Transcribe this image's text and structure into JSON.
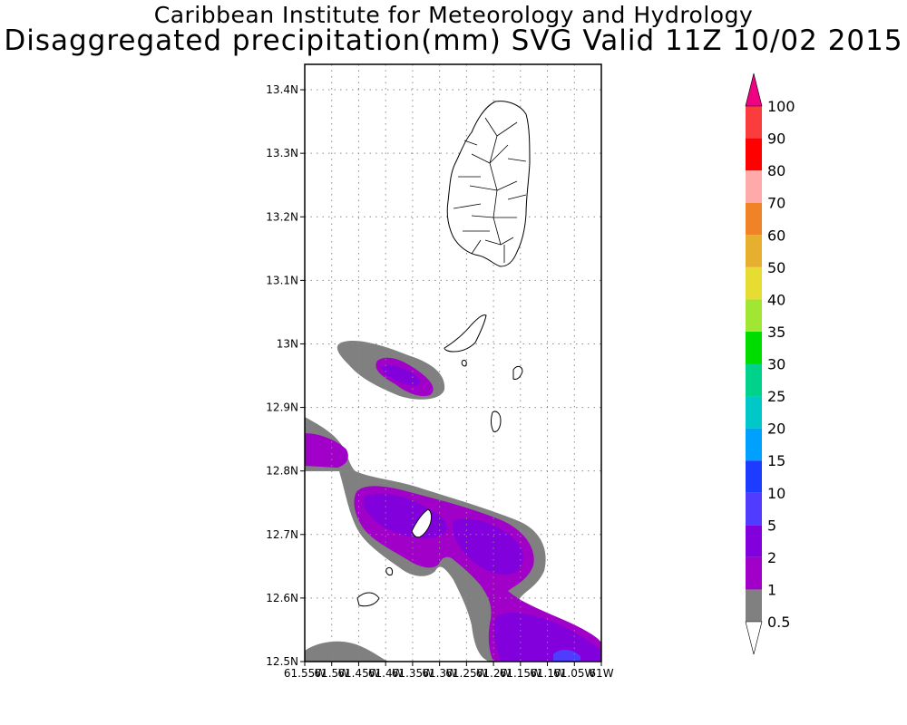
{
  "header": {
    "line1": "Caribbean Institute for Meteorology and Hydrology",
    "line2": "Disaggregated precipitation(mm) SVG Valid 11Z 10/02 2015"
  },
  "map": {
    "lat_ticks": [
      "13.4N",
      "13.3N",
      "13.2N",
      "13.1N",
      "13N",
      "12.9N",
      "12.8N",
      "12.7N",
      "12.6N",
      "12.5N"
    ],
    "lon_ticks": [
      "61.55W",
      "61.5W",
      "61.45W",
      "61.4W",
      "61.35W",
      "61.3W",
      "61.25W",
      "61.2W",
      "61.15W",
      "61.1W",
      "61.05W",
      "61W"
    ],
    "lat_range": [
      12.5,
      13.44
    ],
    "lon_range": [
      -61.55,
      -61.0
    ],
    "grid": true
  },
  "colorbar": {
    "levels": [
      {
        "label": "0.5",
        "color": "#ffffff"
      },
      {
        "label": "1",
        "color": "#808080"
      },
      {
        "label": "2",
        "color": "#a000c8"
      },
      {
        "label": "5",
        "color": "#8200dc"
      },
      {
        "label": "10",
        "color": "#503cff"
      },
      {
        "label": "15",
        "color": "#1e3cff"
      },
      {
        "label": "20",
        "color": "#00a0ff"
      },
      {
        "label": "25",
        "color": "#00c8c8"
      },
      {
        "label": "30",
        "color": "#00d28c"
      },
      {
        "label": "35",
        "color": "#00dc00"
      },
      {
        "label": "40",
        "color": "#a0e632"
      },
      {
        "label": "50",
        "color": "#e6dc32"
      },
      {
        "label": "60",
        "color": "#e6af2d"
      },
      {
        "label": "70",
        "color": "#f08228"
      },
      {
        "label": "80",
        "color": "#ffaaaa"
      },
      {
        "label": "90",
        "color": "#ff0000"
      },
      {
        "label": "100",
        "color": "#fa3c3c"
      }
    ],
    "top_arrow_color": "#f00082"
  }
}
